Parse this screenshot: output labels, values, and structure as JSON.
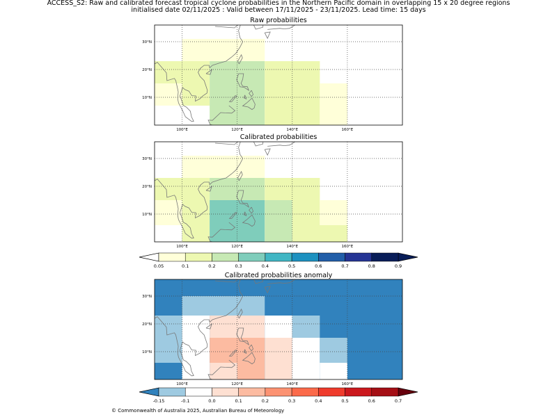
{
  "title_line1": "ACCESS_S2: Raw and calibrated forecast tropical cyclone probabilities in the Northern Pacific domain in overlapping 15 x 20 degree regions",
  "title_line2": "initialised date 02/11/2025 :  Valid between 17/11/2025 - 23/11/2025. Lead time: 15 days",
  "footer": "© Commonwealth of Australia 2025, Australian Bureau of Meteorology",
  "colors": {
    "prob": [
      "#ffffd9",
      "#edf8b1",
      "#c7e9b4",
      "#7fcdbb",
      "#41b6c4",
      "#1d91c0",
      "#225ea8",
      "#253494",
      "#081d58"
    ],
    "prob_under": "#ffffff",
    "anom": [
      "#3182bd",
      "#9ecae1",
      "#ffffff",
      "#fee0d2",
      "#fcbba1",
      "#fc9272",
      "#fb6a4a",
      "#ef3b2c",
      "#cb181d",
      "#a50f15"
    ],
    "anom_over": "#67000d",
    "coast": "#777777",
    "grid": "#444444"
  },
  "chart_data": [
    {
      "type": "heatmap",
      "title": "Raw probabilities",
      "xlim": [
        90,
        180
      ],
      "ylim": [
        0,
        36
      ],
      "xticks": [
        100,
        120,
        140,
        160
      ],
      "xtick_labels": [
        "100°E",
        "120°E",
        "140°E",
        "160°E"
      ],
      "yticks": [
        10,
        20,
        30
      ],
      "ytick_labels": [
        "10°N",
        "20°N",
        "30°N"
      ],
      "rows": [
        {
          "lat": [
            0,
            7
          ],
          "cells": [
            {
              "lon": [
                110,
                130
              ],
              "level": 2
            },
            {
              "lon": [
                130,
                150
              ],
              "level": 1
            },
            {
              "lon": [
                150,
                160
              ],
              "level": 0
            }
          ]
        },
        {
          "lat": [
            7,
            15
          ],
          "cells": [
            {
              "lon": [
                90,
                100
              ],
              "level": 0
            },
            {
              "lon": [
                100,
                110
              ],
              "level": 1
            },
            {
              "lon": [
                110,
                130
              ],
              "level": 2
            },
            {
              "lon": [
                130,
                150
              ],
              "level": 1
            },
            {
              "lon": [
                150,
                160
              ],
              "level": 0
            }
          ]
        },
        {
          "lat": [
            15,
            23
          ],
          "cells": [
            {
              "lon": [
                90,
                110
              ],
              "level": 1
            },
            {
              "lon": [
                110,
                130
              ],
              "level": 2
            },
            {
              "lon": [
                130,
                150
              ],
              "level": 1
            }
          ]
        },
        {
          "lat": [
            23,
            30
          ],
          "cells": [
            {
              "lon": [
                100,
                130
              ],
              "level": 0
            }
          ]
        },
        {
          "lat": [
            30,
            31
          ],
          "cells": [
            {
              "lon": [
                100,
                130
              ],
              "level": 0
            }
          ]
        }
      ]
    },
    {
      "type": "heatmap",
      "title": "Calibrated probabilities",
      "xlim": [
        90,
        180
      ],
      "ylim": [
        0,
        36
      ],
      "xticks": [
        100,
        120,
        140,
        160
      ],
      "xtick_labels": [
        "100°E",
        "120°E",
        "140°E",
        "160°E"
      ],
      "yticks": [
        10,
        20,
        30
      ],
      "ytick_labels": [
        "10°N",
        "20°N",
        "30°N"
      ],
      "rows": [
        {
          "lat": [
            0,
            6
          ],
          "cells": [
            {
              "lon": [
                100,
                110
              ],
              "level": 1
            },
            {
              "lon": [
                110,
                130
              ],
              "level": 3
            },
            {
              "lon": [
                130,
                140
              ],
              "level": 2
            },
            {
              "lon": [
                140,
                160
              ],
              "level": 1
            }
          ]
        },
        {
          "lat": [
            6,
            15
          ],
          "cells": [
            {
              "lon": [
                90,
                100
              ],
              "level": 0
            },
            {
              "lon": [
                100,
                110
              ],
              "level": 1
            },
            {
              "lon": [
                110,
                130
              ],
              "level": 3
            },
            {
              "lon": [
                130,
                140
              ],
              "level": 2
            },
            {
              "lon": [
                140,
                150
              ],
              "level": 1
            },
            {
              "lon": [
                150,
                160
              ],
              "level": 0
            }
          ]
        },
        {
          "lat": [
            15,
            23
          ],
          "cells": [
            {
              "lon": [
                90,
                110
              ],
              "level": 1
            },
            {
              "lon": [
                110,
                130
              ],
              "level": 2
            },
            {
              "lon": [
                130,
                150
              ],
              "level": 1
            }
          ]
        },
        {
          "lat": [
            23,
            31
          ],
          "cells": [
            {
              "lon": [
                100,
                130
              ],
              "level": 0
            }
          ]
        }
      ]
    },
    {
      "type": "heatmap",
      "title": "Calibrated probabilities anomaly",
      "xlim": [
        90,
        180
      ],
      "ylim": [
        0,
        36
      ],
      "xticks": [
        100,
        120,
        140,
        160
      ],
      "xtick_labels": [
        "100°E",
        "120°E",
        "140°E",
        "160°E"
      ],
      "yticks": [
        10,
        20,
        30
      ],
      "ytick_labels": [
        "10°N",
        "20°N",
        "30°N"
      ],
      "background_level": 0,
      "rows": [
        {
          "lat": [
            0,
            6
          ],
          "cells": [
            {
              "lon": [
                100,
                110
              ],
              "level": 2
            },
            {
              "lon": [
                110,
                120
              ],
              "level": 3
            },
            {
              "lon": [
                120,
                130
              ],
              "level": 4
            },
            {
              "lon": [
                130,
                140
              ],
              "level": 3
            },
            {
              "lon": [
                140,
                150
              ],
              "level": 2
            },
            {
              "lon": [
                150,
                160
              ],
              "level": 2
            }
          ]
        },
        {
          "lat": [
            6,
            15
          ],
          "cells": [
            {
              "lon": [
                90,
                100
              ],
              "level": 1
            },
            {
              "lon": [
                100,
                110
              ],
              "level": 2
            },
            {
              "lon": [
                110,
                130
              ],
              "level": 4
            },
            {
              "lon": [
                130,
                140
              ],
              "level": 3
            },
            {
              "lon": [
                140,
                150
              ],
              "level": 2
            },
            {
              "lon": [
                150,
                160
              ],
              "level": 1
            }
          ]
        },
        {
          "lat": [
            15,
            23
          ],
          "cells": [
            {
              "lon": [
                90,
                100
              ],
              "level": 1
            },
            {
              "lon": [
                100,
                110
              ],
              "level": 2
            },
            {
              "lon": [
                110,
                130
              ],
              "level": 3
            },
            {
              "lon": [
                130,
                140
              ],
              "level": 2
            },
            {
              "lon": [
                140,
                150
              ],
              "level": 1
            }
          ]
        },
        {
          "lat": [
            23,
            30
          ],
          "cells": [
            {
              "lon": [
                100,
                130
              ],
              "level": 1
            }
          ]
        }
      ]
    }
  ],
  "colorbars": [
    {
      "name": "probability",
      "ticks": [
        "0.05",
        "0.1",
        "0.2",
        "0.3",
        "0.4",
        "0.5",
        "0.6",
        "0.7",
        "0.8",
        "0.9"
      ]
    },
    {
      "name": "anomaly",
      "ticks": [
        "-0.15",
        "-0.1",
        "0.0",
        "0.1",
        "0.2",
        "0.3",
        "0.4",
        "0.5",
        "0.6",
        "0.7"
      ]
    }
  ]
}
